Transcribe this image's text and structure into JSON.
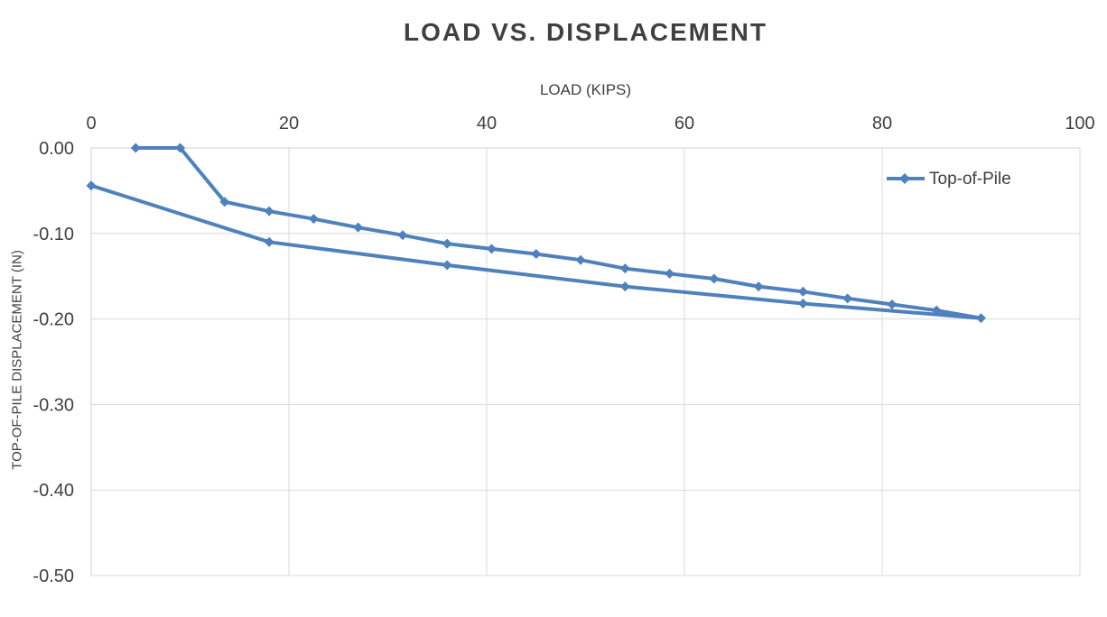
{
  "colors": {
    "series_blue": "#4F81BD",
    "gridline": "#D9D9D9",
    "axis_line": "#D0D0D0",
    "text": "#404040"
  },
  "chart_data": {
    "type": "line",
    "title": "LOAD VS. DISPLACEMENT",
    "xlabel": "LOAD (KIPS)",
    "ylabel": "TOP-OF-PILE DISPLACEMENT (IN)",
    "xlim": [
      0,
      100
    ],
    "ylim": [
      -0.5,
      0.0
    ],
    "grid": true,
    "x_ticks": [
      {
        "v": 0,
        "label": "0"
      },
      {
        "v": 20,
        "label": "20"
      },
      {
        "v": 40,
        "label": "40"
      },
      {
        "v": 60,
        "label": "60"
      },
      {
        "v": 80,
        "label": "80"
      },
      {
        "v": 100,
        "label": "100"
      }
    ],
    "y_ticks": [
      {
        "v": 0.0,
        "label": "0.00"
      },
      {
        "v": -0.1,
        "label": "-0.10"
      },
      {
        "v": -0.2,
        "label": "-0.20"
      },
      {
        "v": -0.3,
        "label": "-0.30"
      },
      {
        "v": -0.4,
        "label": "-0.40"
      },
      {
        "v": -0.5,
        "label": "-0.50"
      }
    ],
    "legend_position": "inside-top-right",
    "series": [
      {
        "name": "Top-of-Pile",
        "color": "#4F81BD",
        "marker": "diamond",
        "points_loading": [
          [
            4.5,
            0.0
          ],
          [
            9.0,
            0.0
          ],
          [
            13.5,
            -0.063
          ],
          [
            18.0,
            -0.074
          ],
          [
            22.5,
            -0.083
          ],
          [
            27.0,
            -0.093
          ],
          [
            31.5,
            -0.102
          ],
          [
            36.0,
            -0.112
          ],
          [
            40.5,
            -0.118
          ],
          [
            45.0,
            -0.124
          ],
          [
            49.5,
            -0.131
          ],
          [
            54.0,
            -0.141
          ],
          [
            58.5,
            -0.147
          ],
          [
            63.0,
            -0.153
          ],
          [
            67.5,
            -0.162
          ],
          [
            72.0,
            -0.168
          ],
          [
            76.5,
            -0.176
          ],
          [
            81.0,
            -0.183
          ],
          [
            85.5,
            -0.19
          ],
          [
            90.0,
            -0.199
          ]
        ],
        "points_unloading": [
          [
            72.0,
            -0.182
          ],
          [
            54.0,
            -0.162
          ],
          [
            36.0,
            -0.137
          ],
          [
            18.0,
            -0.11
          ],
          [
            0.0,
            -0.044
          ]
        ]
      }
    ]
  }
}
